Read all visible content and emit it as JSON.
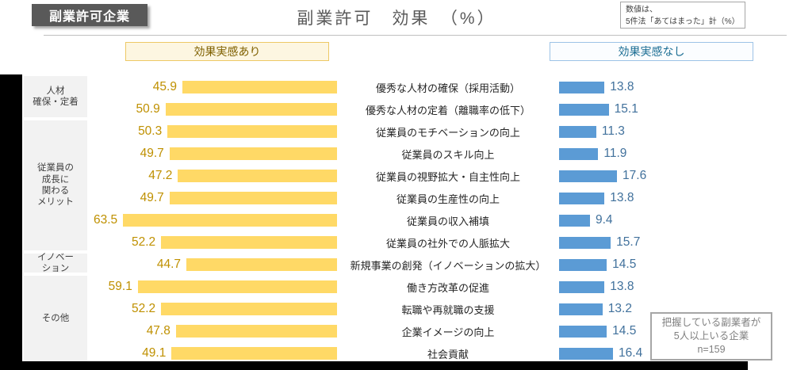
{
  "page": {
    "badge": "副業許可企業",
    "title": "副業許可　効果　（%）",
    "note": {
      "line1": "数値は、",
      "line2": "5件法「あてはまった」計（%）"
    },
    "sample_note": {
      "line1": "把握している副業者が",
      "line2": "5人以上いる企業",
      "line3": "n=159"
    }
  },
  "legend": {
    "yes": "効果実感あり",
    "no": "効果実感なし"
  },
  "colors": {
    "yes_bar": "#ffd966",
    "yes_value_text": "#bf9000",
    "no_bar": "#5b9bd5",
    "no_value_text": "#41719c",
    "badge_bg": "#595959",
    "category_box_bg": "#f2f2f2"
  },
  "chart_data": {
    "type": "bar",
    "title": "副業許可　効果　（%）",
    "subtitle": "数値は、5件法「あてはまった」計（%）",
    "legend": [
      "効果実感あり",
      "効果実感なし"
    ],
    "legend_position": "top",
    "orientation": "horizontal-butterfly",
    "xlim": [
      0,
      70
    ],
    "categories": [
      "優秀な人材の確保（採用活動）",
      "優秀な人材の定着（離職率の低下）",
      "従業員のモチベーションの向上",
      "従業員のスキル向上",
      "従業員の視野拡大・自主性向上",
      "従業員の生産性の向上",
      "従業員の収入補填",
      "従業員の社外での人脈拡大",
      "新規事業の創発（イノベーションの拡大）",
      "働き方改革の促進",
      "転職や再就職の支援",
      "企業イメージの向上",
      "社会貢献"
    ],
    "series": [
      {
        "name": "効果実感あり",
        "values": [
          45.9,
          50.9,
          50.3,
          49.7,
          47.2,
          49.7,
          63.5,
          52.2,
          44.7,
          59.1,
          52.2,
          47.8,
          49.1
        ]
      },
      {
        "name": "効果実感なし",
        "values": [
          13.8,
          15.1,
          11.3,
          11.9,
          17.6,
          13.8,
          9.4,
          15.7,
          14.5,
          13.8,
          13.2,
          14.5,
          16.4
        ]
      }
    ],
    "row_groups": [
      {
        "label_lines": [
          "人材",
          "確保・定着"
        ],
        "rows": 2
      },
      {
        "label_lines": [
          "従業員の",
          "成長に",
          "関わる",
          "メリット"
        ],
        "rows": 6
      },
      {
        "label_lines": [
          "イノベー",
          "ション"
        ],
        "rows": 1
      },
      {
        "label_lines": [
          "その他"
        ],
        "rows": 4
      }
    ]
  }
}
